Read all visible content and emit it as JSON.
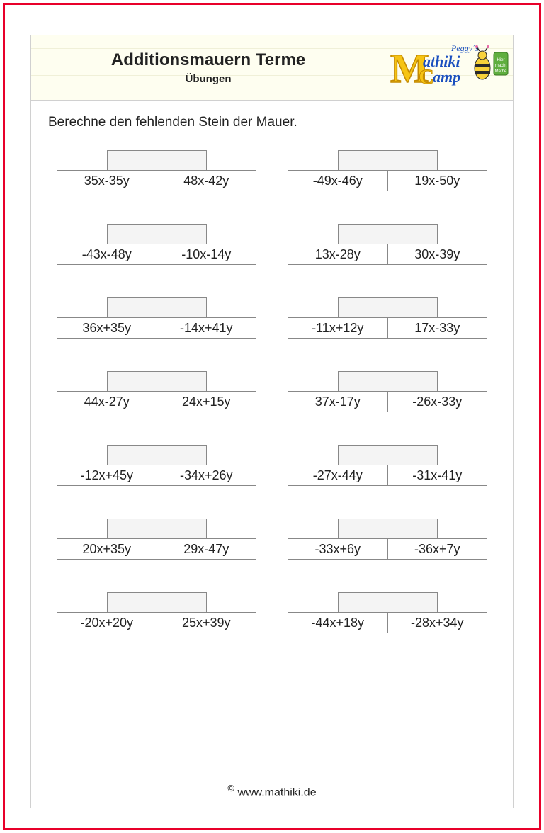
{
  "header": {
    "title": "Additionsmauern Terme",
    "subtitle": "Übungen"
  },
  "logo": {
    "brand_text_top": "Peggy´s",
    "brand_letter_main": "M",
    "brand_text_mid": "athiki",
    "brand_text_bot": "amp",
    "colors": {
      "m_fill": "#f6c414",
      "m_stroke": "#c48a00",
      "text_color": "#1a4fbf",
      "c_fill": "#f6c414",
      "bee_body": "#f8d23a",
      "bee_stripe": "#2a2a2a",
      "pink": "#e86aa6",
      "green": "#5fae3e"
    }
  },
  "instruction": "Berechne den fehlenden Stein der Mauer.",
  "walls": [
    {
      "left": "35x-35y",
      "right": "48x-42y"
    },
    {
      "left": "-49x-46y",
      "right": "19x-50y"
    },
    {
      "left": "-43x-48y",
      "right": "-10x-14y"
    },
    {
      "left": "13x-28y",
      "right": "30x-39y"
    },
    {
      "left": "36x+35y",
      "right": "-14x+41y"
    },
    {
      "left": "-11x+12y",
      "right": "17x-33y"
    },
    {
      "left": "44x-27y",
      "right": "24x+15y"
    },
    {
      "left": "37x-17y",
      "right": "-26x-33y"
    },
    {
      "left": "-12x+45y",
      "right": "-34x+26y"
    },
    {
      "left": "-27x-44y",
      "right": "-31x-41y"
    },
    {
      "left": "20x+35y",
      "right": "29x-47y"
    },
    {
      "left": "-33x+6y",
      "right": "-36x+7y"
    },
    {
      "left": "-20x+20y",
      "right": "25x+39y"
    },
    {
      "left": "-44x+18y",
      "right": "-28x+34y"
    }
  ],
  "footer": {
    "copyright_symbol": "©",
    "site": "www.mathiki.de"
  },
  "styling": {
    "frame_border_color": "#e8002a",
    "page_border_color": "#d0d0d0",
    "brick_border_color": "#888888",
    "brick_bg": "#ffffff",
    "top_brick_bg": "#f4f4f4",
    "text_color": "#222222",
    "font_family": "Arial",
    "title_fontsize": 24,
    "subtitle_fontsize": 15,
    "instruction_fontsize": 19,
    "brick_fontsize": 18,
    "footer_fontsize": 16
  }
}
